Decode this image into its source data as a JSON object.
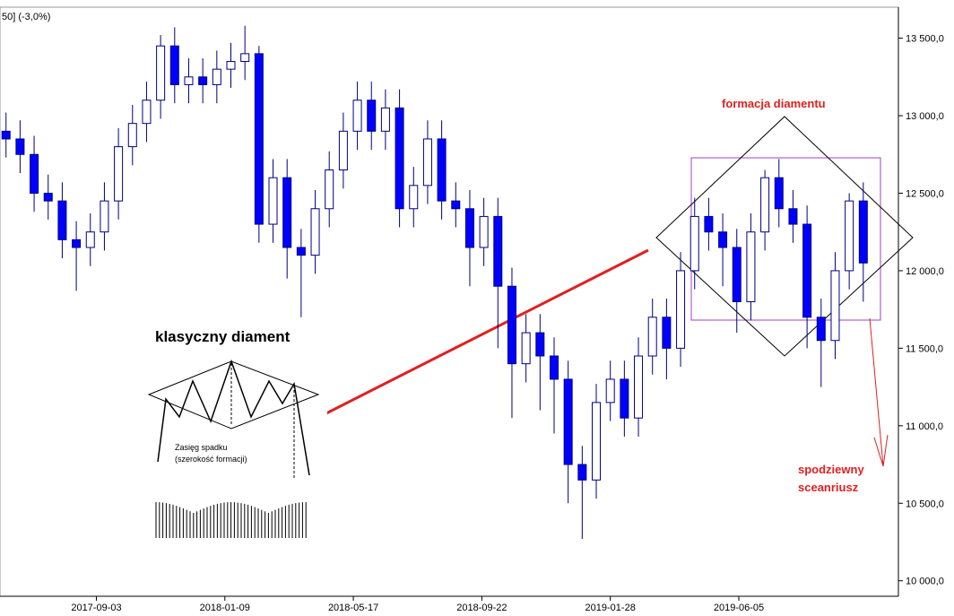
{
  "chart_data": {
    "type": "candlestick",
    "header": "50] (-3,0%)",
    "x": [
      "2017-06-05",
      "2017-06-19",
      "2017-07-03",
      "2017-07-17",
      "2017-07-31",
      "2017-08-14",
      "2017-08-28",
      "2017-09-11",
      "2017-09-25",
      "2017-10-09",
      "2017-10-23",
      "2017-11-06",
      "2017-11-20",
      "2017-12-04",
      "2017-12-18",
      "2018-01-01",
      "2018-01-15",
      "2018-01-29",
      "2018-02-12",
      "2018-02-26",
      "2018-03-12",
      "2018-03-26",
      "2018-04-09",
      "2018-04-23",
      "2018-05-07",
      "2018-05-21",
      "2018-06-04",
      "2018-06-18",
      "2018-07-02",
      "2018-07-16",
      "2018-07-30",
      "2018-08-13",
      "2018-08-27",
      "2018-09-10",
      "2018-09-24",
      "2018-10-08",
      "2018-10-22",
      "2018-11-05",
      "2018-11-19",
      "2018-12-03",
      "2018-12-17",
      "2018-12-31",
      "2019-01-14",
      "2019-01-28",
      "2019-02-11",
      "2019-02-25",
      "2019-03-11",
      "2019-03-25",
      "2019-04-08",
      "2019-04-22",
      "2019-05-06",
      "2019-05-20",
      "2019-06-03",
      "2019-06-17",
      "2019-07-01",
      "2019-07-15",
      "2019-07-29",
      "2019-08-12",
      "2019-08-26",
      "2019-09-09",
      "2019-09-23",
      "2019-10-07"
    ],
    "open": [
      12900,
      12850,
      12750,
      12500,
      12450,
      12200,
      12150,
      12250,
      12450,
      12800,
      12950,
      13100,
      13450,
      13200,
      13250,
      13200,
      13300,
      13350,
      13400,
      12300,
      12600,
      12150,
      12100,
      12400,
      12650,
      12900,
      13100,
      12900,
      13050,
      12400,
      12550,
      12850,
      12450,
      12400,
      12150,
      12350,
      11900,
      11400,
      11600,
      11450,
      11300,
      10750,
      10650,
      11150,
      11300,
      11050,
      11450,
      11700,
      11500,
      12000,
      12350,
      12250,
      12150,
      11800,
      12250,
      12600,
      12400,
      12300,
      11700,
      11550,
      12000,
      12450
    ],
    "high": [
      13020,
      12970,
      12870,
      12620,
      12570,
      12320,
      12370,
      12570,
      12920,
      13070,
      13220,
      13520,
      13570,
      13370,
      13370,
      13420,
      13470,
      13580,
      13450,
      12720,
      12720,
      12270,
      12520,
      12770,
      13020,
      13220,
      13220,
      13170,
      13170,
      12670,
      12970,
      12970,
      12570,
      12520,
      12470,
      12470,
      12020,
      11720,
      11720,
      11570,
      11420,
      10870,
      11270,
      11420,
      11420,
      11570,
      11820,
      11820,
      12120,
      12470,
      12470,
      12370,
      12270,
      12370,
      12650,
      12720,
      12520,
      12420,
      11820,
      12120,
      12500,
      12570
    ],
    "low": [
      12730,
      12630,
      12380,
      12330,
      12080,
      11870,
      12030,
      12130,
      12330,
      12680,
      12830,
      12980,
      13080,
      13080,
      13080,
      13080,
      13180,
      13230,
      12180,
      12180,
      11950,
      11700,
      11980,
      12280,
      12530,
      12780,
      12780,
      12780,
      12280,
      12280,
      12430,
      12330,
      12280,
      11900,
      12030,
      11500,
      11050,
      11280,
      11100,
      10950,
      10500,
      10270,
      10530,
      11030,
      10930,
      10930,
      11330,
      11300,
      11380,
      11880,
      12130,
      11900,
      11600,
      11680,
      12130,
      12280,
      12180,
      11500,
      11250,
      11430,
      11880,
      11800
    ],
    "close": [
      12850,
      12750,
      12500,
      12450,
      12200,
      12150,
      12250,
      12450,
      12800,
      12950,
      13100,
      13450,
      13200,
      13250,
      13200,
      13300,
      13350,
      13400,
      12300,
      12600,
      12150,
      12100,
      12400,
      12650,
      12900,
      13100,
      12900,
      13050,
      12400,
      12550,
      12850,
      12450,
      12400,
      12150,
      12350,
      11900,
      11400,
      11600,
      11450,
      11300,
      10750,
      10650,
      11150,
      11300,
      11050,
      11450,
      11700,
      11500,
      12000,
      12350,
      12250,
      12150,
      11800,
      12250,
      12600,
      12400,
      12300,
      11700,
      11550,
      12000,
      12450,
      12050
    ],
    "up_color": "#ffffff",
    "down_color": "#0000ff",
    "xlim": [
      "2017-05-30",
      "2019-11-11"
    ],
    "xticks": [
      "2017-09-03",
      "2018-01-09",
      "2018-05-17",
      "2018-09-22",
      "2019-01-28",
      "2019-06-05"
    ],
    "ylim": [
      9900,
      13700
    ],
    "yticks": [
      {
        "value": 10000,
        "label": "10 000,0"
      },
      {
        "value": 10500,
        "label": "10 500,0"
      },
      {
        "value": 11000,
        "label": "11 000,0"
      },
      {
        "value": 11500,
        "label": "11 500,0"
      },
      {
        "value": 12000,
        "label": "12 000,0"
      },
      {
        "value": 12500,
        "label": "12 500,0"
      },
      {
        "value": 13000,
        "label": "13 000,0"
      },
      {
        "value": 13500,
        "label": "13 500,0"
      }
    ],
    "annotations": {
      "pattern": "formacja diamentu",
      "scenario_1": "spodziewny",
      "scenario_2": "sceanriusz",
      "classic": "klasyczny diament",
      "range_1": "Zasięg spadku",
      "range_2": "(szerokość formacji)"
    }
  }
}
